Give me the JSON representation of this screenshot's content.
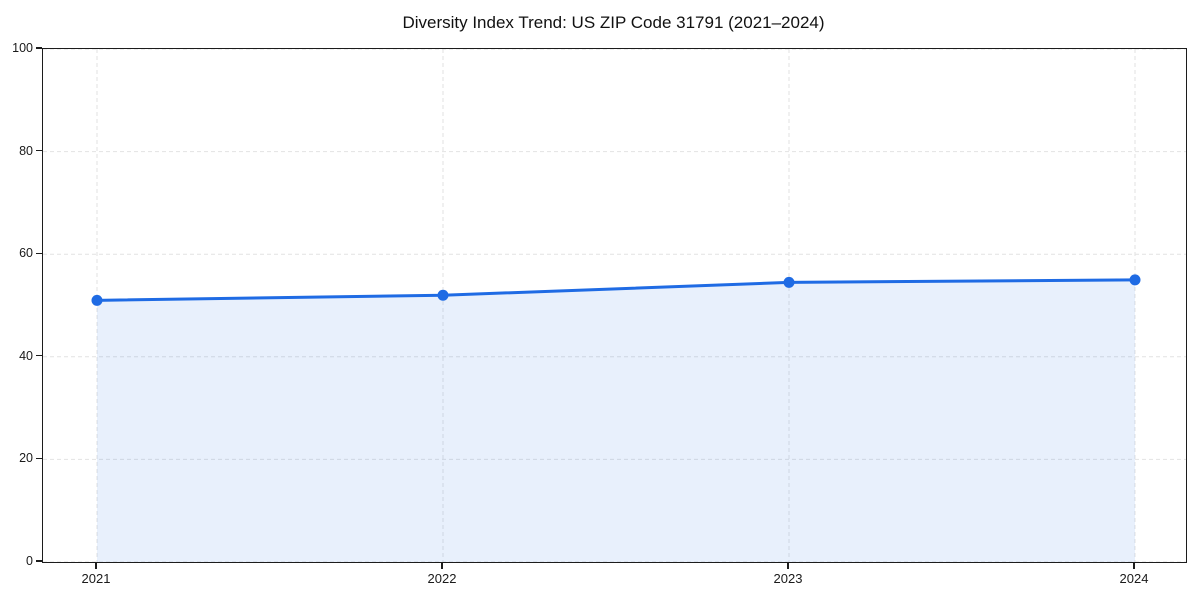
{
  "page": {
    "background": "#ffffff"
  },
  "chart_data": {
    "type": "area",
    "title": "Diversity Index Trend: US ZIP Code 31791 (2021–2024)",
    "categories": [
      "2021",
      "2022",
      "2023",
      "2024"
    ],
    "values": [
      51,
      52,
      54.5,
      55
    ],
    "xlabel": "",
    "ylabel": "",
    "ylim": [
      0,
      100
    ],
    "yticks": [
      0,
      20,
      40,
      60,
      80,
      100
    ],
    "grid": true,
    "grid_style": "dashed",
    "legend_position": "none",
    "line_color": "#1f6be4",
    "marker_color": "#1f6be4",
    "fill_color": "rgba(31, 107, 228, 0.10)",
    "gridline_color": "#e2e2e2",
    "spine_color": "#1c1c1c",
    "marker": "circle"
  }
}
